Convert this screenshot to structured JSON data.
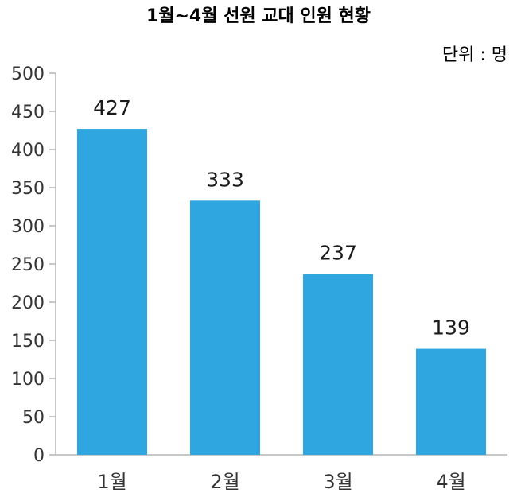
{
  "chart_data": {
    "type": "bar",
    "title": "1월~4월 선원 교대 인원 현황",
    "unit_label": "단위 : 명",
    "categories": [
      "1월",
      "2월",
      "3월",
      "4월"
    ],
    "values": [
      427,
      333,
      237,
      139
    ],
    "data_labels": [
      "427",
      "333",
      "237",
      "139"
    ],
    "ylim": [
      0,
      500
    ],
    "yticks": [
      0,
      50,
      100,
      150,
      200,
      250,
      300,
      350,
      400,
      450,
      500
    ],
    "bar_color": "#2fa6e0",
    "grid": false,
    "legend": "none"
  }
}
